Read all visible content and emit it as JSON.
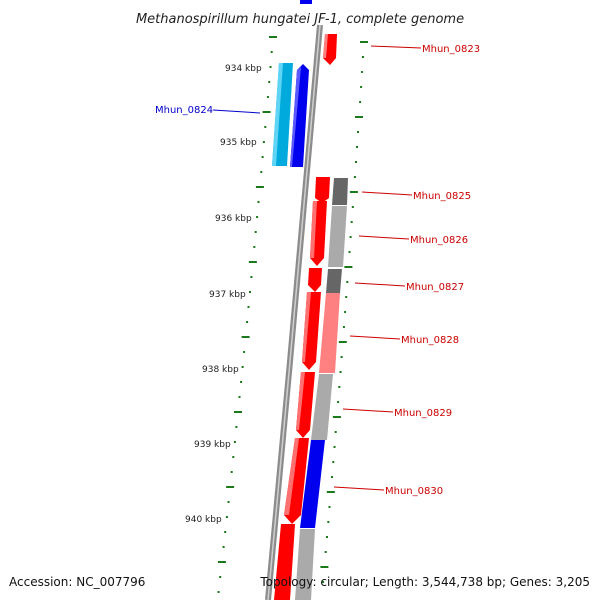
{
  "title": "Methanospirillum hungatei JF-1, complete genome",
  "footer": {
    "accession": "Accession: NC_007796",
    "topology": "Topology: circular; Length: 3,544,738 bp; Genes: 3,205"
  },
  "colors": {
    "backbone": "#8c8c8c",
    "tick": "#1a7a1a",
    "forward_gene": "#ff0000",
    "reverse_gene_blue": "#0000ee",
    "cyan_gene": "#00aadd",
    "red_label": "#cc0000",
    "blue_label": "#0000cc",
    "grey_feature": "#aaaaaa",
    "dark_grey_feature": "#666666",
    "pink_feature": "#ff8080"
  },
  "scale": {
    "unit": "kbp",
    "labeled_ticks": [
      {
        "label": "934 kbp",
        "kbp": 934
      },
      {
        "label": "935 kbp",
        "kbp": 935
      },
      {
        "label": "936 kbp",
        "kbp": 936
      },
      {
        "label": "937 kbp",
        "kbp": 937
      },
      {
        "label": "938 kbp",
        "kbp": 938
      },
      {
        "label": "939 kbp",
        "kbp": 939
      },
      {
        "label": "940 kbp",
        "kbp": 940
      }
    ]
  },
  "genes": [
    {
      "name": "Mhun_0823",
      "strand": "+",
      "start_kbp": 933.55,
      "end_kbp": 933.85,
      "color": "red"
    },
    {
      "name": "Mhun_0824",
      "strand": "-",
      "start_kbp": 933.95,
      "end_kbp": 935.3,
      "color": "blue"
    },
    {
      "name": "Mhun_0825",
      "strand": "+",
      "start_kbp": 935.5,
      "end_kbp": 935.8,
      "color": "red"
    },
    {
      "name": "Mhun_0826",
      "strand": "+",
      "start_kbp": 935.82,
      "end_kbp": 936.65,
      "color": "red"
    },
    {
      "name": "Mhun_0827",
      "strand": "+",
      "start_kbp": 936.68,
      "end_kbp": 936.98,
      "color": "red"
    },
    {
      "name": "Mhun_0828",
      "strand": "+",
      "start_kbp": 937.0,
      "end_kbp": 938.05,
      "color": "red"
    },
    {
      "name": "Mhun_0829",
      "strand": "+",
      "start_kbp": 938.07,
      "end_kbp": 938.9,
      "color": "red"
    },
    {
      "name": "Mhun_0830",
      "strand": "+",
      "start_kbp": 938.92,
      "end_kbp": 940.05,
      "color": "red"
    }
  ]
}
